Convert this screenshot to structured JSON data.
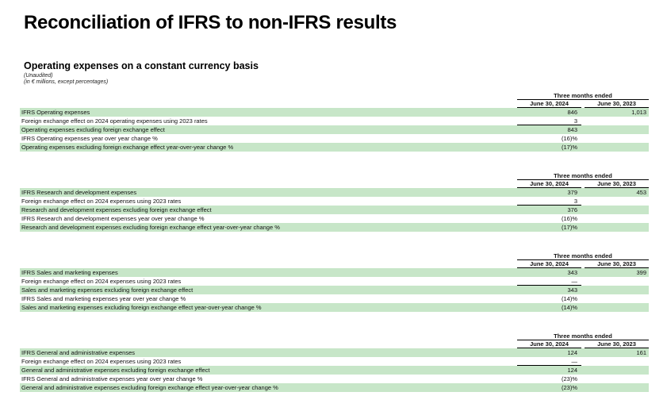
{
  "page": {
    "title": "Reconciliation of IFRS to non-IFRS results",
    "subtitle": "Operating expenses on a constant currency basis",
    "note_unaudited": "(Unaudited)",
    "note_units": "(in € millions, except percentages)"
  },
  "colors": {
    "row_highlight": "#c7e6c8",
    "rule": "#000000"
  },
  "tables": [
    {
      "period_header": "Three months ended",
      "columns": [
        "June 30, 2024",
        "June 30, 2023"
      ],
      "rows": [
        {
          "label": "IFRS Operating expenses",
          "v2024": "846",
          "v2023": "1,013",
          "shaded": true,
          "sumline": false
        },
        {
          "label": "Foreign exchange effect on 2024 operating expenses using 2023 rates",
          "v2024": "3",
          "v2023": "",
          "shaded": false,
          "sumline": true
        },
        {
          "label": "Operating expenses excluding foreign exchange effect",
          "v2024": "843",
          "v2023": "",
          "shaded": true,
          "sumline": false
        },
        {
          "label": "IFRS Operating expenses year over year change %",
          "v2024": "(16)%",
          "v2023": "",
          "shaded": false,
          "sumline": false
        },
        {
          "label": "Operating expenses excluding foreign exchange effect year-over-year change %",
          "v2024": "(17)%",
          "v2023": "",
          "shaded": true,
          "sumline": false
        }
      ]
    },
    {
      "period_header": "Three months ended",
      "columns": [
        "June 30, 2024",
        "June 30, 2023"
      ],
      "rows": [
        {
          "label": "IFRS Research and development expenses",
          "v2024": "379",
          "v2023": "453",
          "shaded": true,
          "sumline": false
        },
        {
          "label": "Foreign exchange effect on 2024 expenses using 2023 rates",
          "v2024": "3",
          "v2023": "",
          "shaded": false,
          "sumline": true
        },
        {
          "label": "Research and development expenses excluding foreign exchange effect",
          "v2024": "376",
          "v2023": "",
          "shaded": true,
          "sumline": false
        },
        {
          "label": "IFRS Research and development expenses year over year change %",
          "v2024": "(16)%",
          "v2023": "",
          "shaded": false,
          "sumline": false
        },
        {
          "label": "Research and development expenses excluding foreign exchange effect year-over-year change %",
          "v2024": "(17)%",
          "v2023": "",
          "shaded": true,
          "sumline": false
        }
      ]
    },
    {
      "period_header": "Three months ended",
      "columns": [
        "June 30, 2024",
        "June 30, 2023"
      ],
      "rows": [
        {
          "label": "IFRS Sales and marketing expenses",
          "v2024": "343",
          "v2023": "399",
          "shaded": true,
          "sumline": false
        },
        {
          "label": "Foreign exchange effect on 2024 expenses using 2023 rates",
          "v2024": "—",
          "v2023": "",
          "shaded": false,
          "sumline": true
        },
        {
          "label": "Sales and marketing expenses excluding foreign exchange effect",
          "v2024": "343",
          "v2023": "",
          "shaded": true,
          "sumline": false
        },
        {
          "label": "IFRS Sales and marketing expenses year over year change %",
          "v2024": "(14)%",
          "v2023": "",
          "shaded": false,
          "sumline": false
        },
        {
          "label": "Sales and marketing expenses excluding foreign exchange effect year-over-year change %",
          "v2024": "(14)%",
          "v2023": "",
          "shaded": true,
          "sumline": false
        }
      ]
    },
    {
      "period_header": "Three months ended",
      "columns": [
        "June 30, 2024",
        "June 30, 2023"
      ],
      "rows": [
        {
          "label": "IFRS General and administrative expenses",
          "v2024": "124",
          "v2023": "161",
          "shaded": true,
          "sumline": false
        },
        {
          "label": "Foreign exchange effect on 2024 expenses using 2023 rates",
          "v2024": "—",
          "v2023": "",
          "shaded": false,
          "sumline": true
        },
        {
          "label": "General and administrative expenses excluding foreign exchange effect",
          "v2024": "124",
          "v2023": "",
          "shaded": true,
          "sumline": false
        },
        {
          "label": "IFRS General and administrative expenses year over year change %",
          "v2024": "(23)%",
          "v2023": "",
          "shaded": false,
          "sumline": false
        },
        {
          "label": "General and administrative expenses excluding foreign exchange effect year-over-year change %",
          "v2024": "(23)%",
          "v2023": "",
          "shaded": true,
          "sumline": false
        }
      ]
    }
  ]
}
